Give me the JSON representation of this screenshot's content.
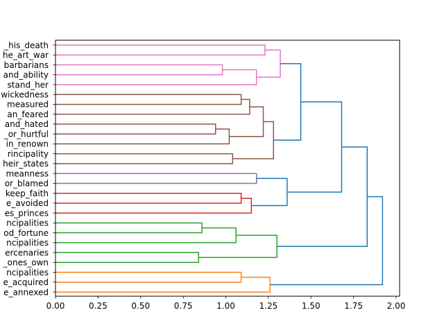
{
  "chart_data": {
    "type": "dendrogram",
    "title": "",
    "xlabel": "",
    "ylabel": "",
    "xlim": [
      0,
      2.02
    ],
    "xticks": [
      "0.00",
      "0.25",
      "0.50",
      "0.75",
      "1.00",
      "1.25",
      "1.50",
      "1.75",
      "2.00"
    ],
    "xtick_values": [
      0,
      0.25,
      0.5,
      0.75,
      1.0,
      1.25,
      1.5,
      1.75,
      2.0
    ],
    "leaves": [
      "_his_death",
      "he_art_war",
      "barbarians",
      "and_ability",
      "stand_her",
      "wickedness",
      "measured",
      "an_feared",
      "and_hated",
      "_or_hurtful",
      "in_renown",
      "rincipality",
      "heir_states",
      "meanness",
      "or_blamed",
      "keep_faith",
      "e_avoided",
      "es_princes",
      "ncipalities",
      "od_fortune",
      "ncipalities",
      "ercenaries",
      "_ones_own",
      "ncipalities",
      "e_acquired",
      "e_annexed"
    ],
    "colors": {
      "pink": "#e377c2",
      "brown": "#8c564b",
      "purple": "#9467bd",
      "red": "#d62728",
      "green": "#2ca02c",
      "orange": "#ff7f0e",
      "blue": "#1f77b4"
    },
    "merges": [
      {
        "a": 0,
        "b": 1,
        "height": 1.23,
        "color": "pink"
      },
      {
        "a": 2,
        "b": 3,
        "height": 0.98,
        "color": "pink"
      },
      {
        "a": "n1",
        "b": 4,
        "height": 1.18,
        "color": "pink"
      },
      {
        "a": "n0",
        "b": "n2",
        "height": 1.32,
        "color": "pink"
      },
      {
        "a": 5,
        "b": 6,
        "height": 1.09,
        "color": "brown"
      },
      {
        "a": "n4",
        "b": 7,
        "height": 1.14,
        "color": "brown"
      },
      {
        "a": 8,
        "b": 9,
        "height": 0.94,
        "color": "brown"
      },
      {
        "a": "n6",
        "b": 10,
        "height": 1.02,
        "color": "brown"
      },
      {
        "a": "n5",
        "b": "n7",
        "height": 1.22,
        "color": "brown"
      },
      {
        "a": 11,
        "b": 12,
        "height": 1.04,
        "color": "brown"
      },
      {
        "a": "n8",
        "b": "n9",
        "height": 1.28,
        "color": "brown"
      },
      {
        "a": "n3",
        "b": "n10",
        "height": 1.44,
        "color": "blue"
      },
      {
        "a": 13,
        "b": 14,
        "height": 1.18,
        "color": "purple"
      },
      {
        "a": 15,
        "b": 16,
        "height": 1.09,
        "color": "red"
      },
      {
        "a": "n13",
        "b": 17,
        "height": 1.15,
        "color": "red"
      },
      {
        "a": "n12",
        "b": "n14",
        "height": 1.36,
        "color": "blue"
      },
      {
        "a": "n11",
        "b": "n15",
        "height": 1.68,
        "color": "blue"
      },
      {
        "a": 18,
        "b": 19,
        "height": 0.86,
        "color": "green"
      },
      {
        "a": "n17",
        "b": 20,
        "height": 1.06,
        "color": "green"
      },
      {
        "a": 21,
        "b": 22,
        "height": 0.84,
        "color": "green"
      },
      {
        "a": "n18",
        "b": "n19",
        "height": 1.3,
        "color": "green"
      },
      {
        "a": "n16",
        "b": "n20",
        "height": 1.83,
        "color": "blue"
      },
      {
        "a": 23,
        "b": 24,
        "height": 1.09,
        "color": "orange"
      },
      {
        "a": "n22",
        "b": 25,
        "height": 1.26,
        "color": "orange"
      },
      {
        "a": "n21",
        "b": "n23",
        "height": 1.92,
        "color": "blue"
      }
    ]
  }
}
